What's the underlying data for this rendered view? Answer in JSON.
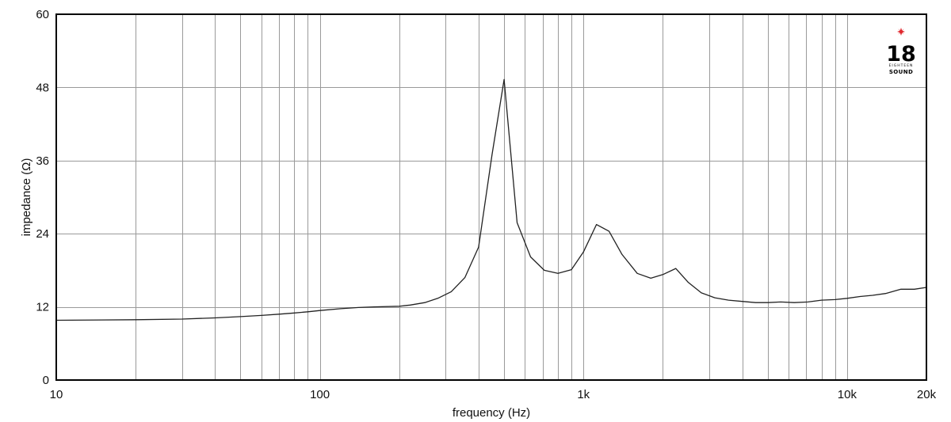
{
  "chart_data": {
    "type": "line",
    "title": "",
    "xlabel": "frequency (Hz)",
    "ylabel": "impedance (Ω)",
    "x_scale": "log",
    "xlim": [
      10,
      20000
    ],
    "ylim": [
      0,
      60
    ],
    "y_ticks": [
      0,
      12,
      24,
      36,
      48,
      60
    ],
    "x_ticks": [
      {
        "value": 10,
        "label": "10"
      },
      {
        "value": 100,
        "label": "100"
      },
      {
        "value": 1000,
        "label": "1k"
      },
      {
        "value": 10000,
        "label": "10k"
      },
      {
        "value": 20000,
        "label": "20k"
      }
    ],
    "grid": true,
    "series": [
      {
        "x": [
          10,
          20,
          30,
          40,
          50,
          60,
          70,
          80,
          90,
          100,
          120,
          140,
          160,
          200,
          220,
          250,
          280,
          315,
          355,
          400,
          450,
          500,
          560,
          630,
          710,
          800,
          900,
          1000,
          1120,
          1250,
          1400,
          1600,
          1800,
          2000,
          2240,
          2500,
          2800,
          3150,
          3550,
          4000,
          4500,
          5000,
          5600,
          6300,
          7100,
          8000,
          9000,
          10000,
          11200,
          12500,
          14000,
          16000,
          18000,
          20000
        ],
        "y": [
          9.8,
          9.9,
          10.0,
          10.2,
          10.4,
          10.6,
          10.8,
          11.0,
          11.2,
          11.4,
          11.7,
          11.9,
          12.0,
          12.1,
          12.3,
          12.7,
          13.4,
          14.5,
          16.8,
          21.8,
          37.0,
          49.3,
          25.8,
          20.2,
          18.0,
          17.5,
          18.1,
          21.0,
          25.5,
          24.4,
          20.6,
          17.5,
          16.7,
          17.3,
          18.3,
          16.0,
          14.3,
          13.5,
          13.1,
          12.9,
          12.7,
          12.7,
          12.8,
          12.7,
          12.8,
          13.1,
          13.2,
          13.4,
          13.7,
          13.9,
          14.2,
          14.9,
          14.9,
          15.2
        ]
      }
    ],
    "line_color": "#222222",
    "legend": "none"
  },
  "logo": {
    "number": "18",
    "small_text": "EIGHTEEN",
    "word": "SOUND",
    "star_color": "#e0282e"
  }
}
